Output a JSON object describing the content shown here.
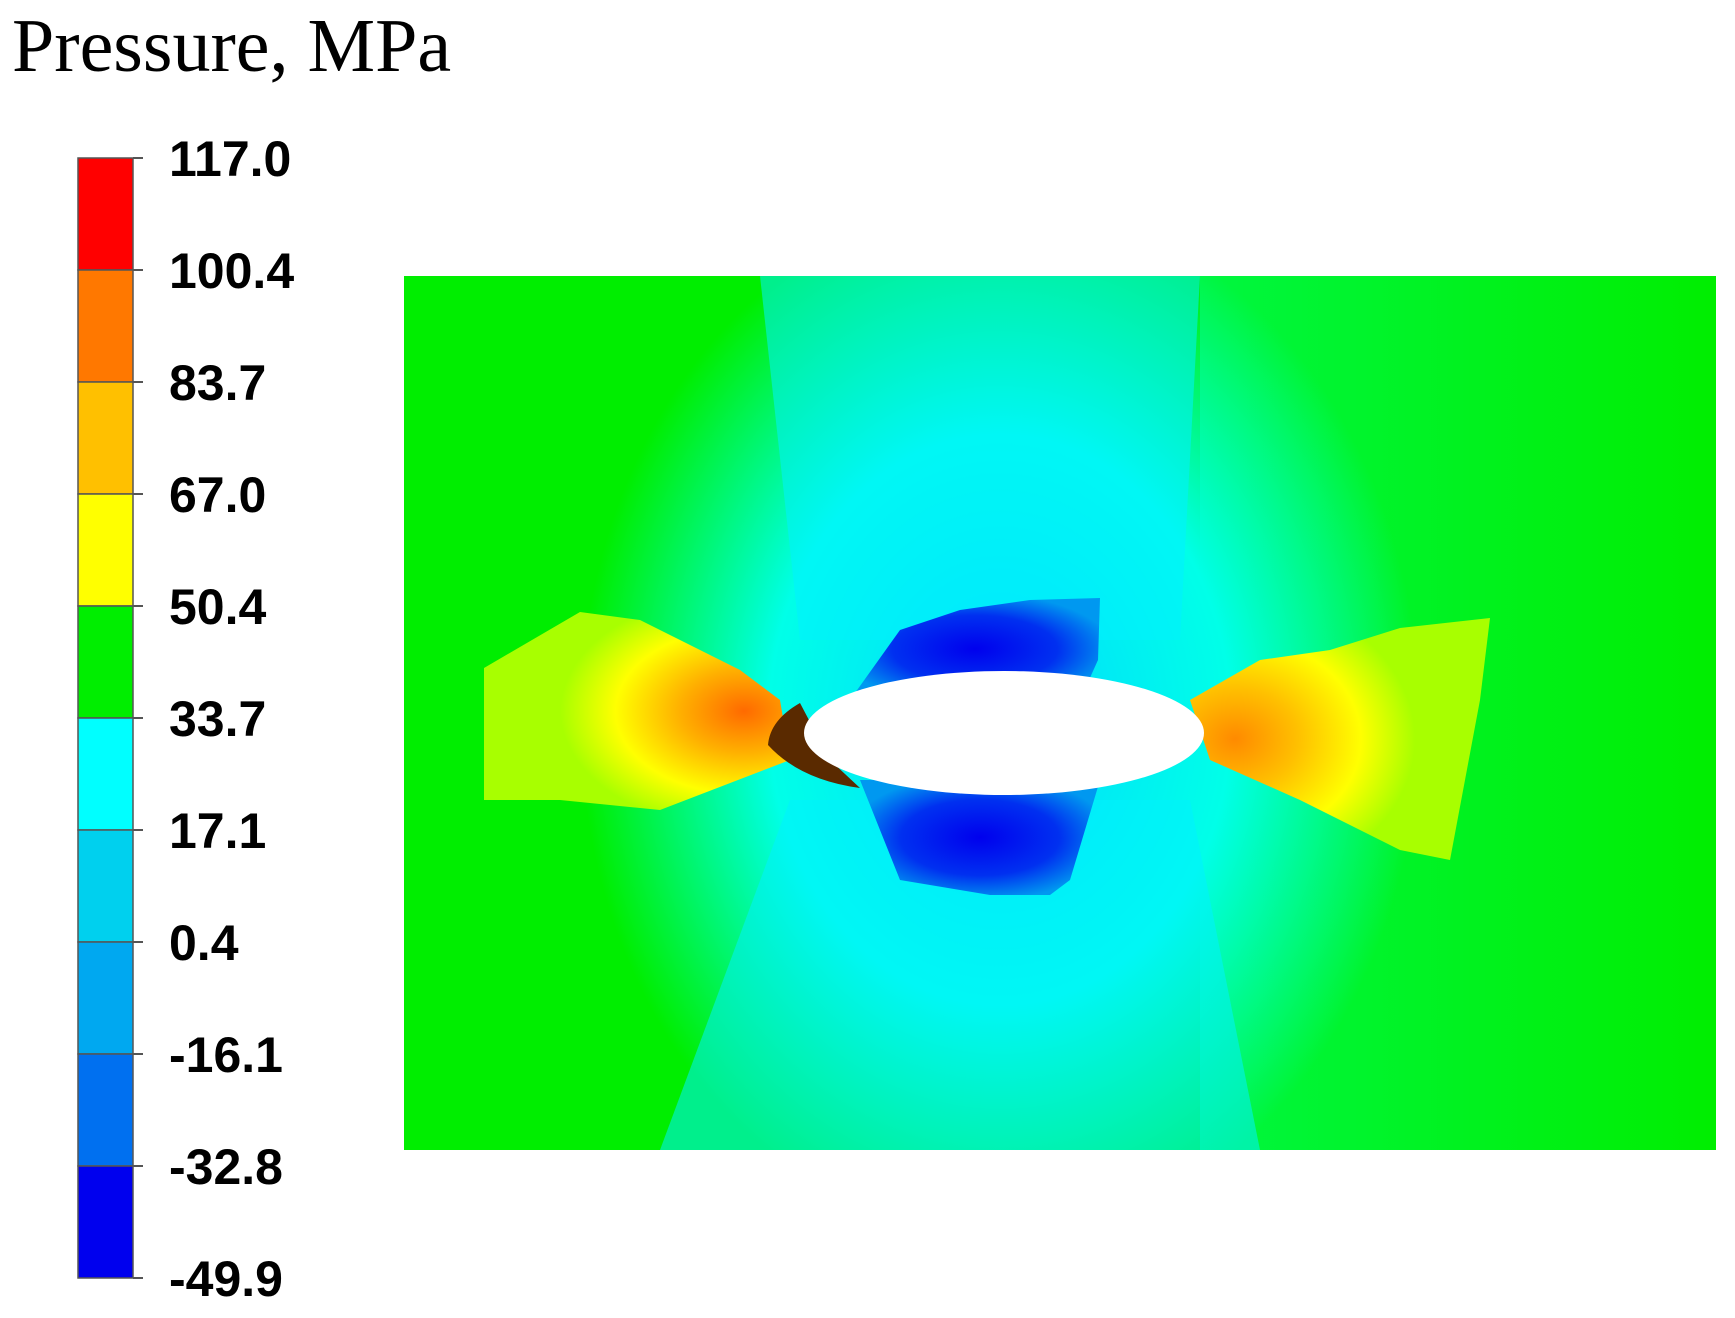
{
  "chart_data": {
    "type": "heatmap",
    "title": "Pressure, MPa",
    "colorbar": {
      "ticks": [
        "117.0",
        "100.4",
        "83.7",
        "67.0",
        "50.4",
        "33.7",
        "17.1",
        "0.4",
        "-16.1",
        "-32.8",
        "-49.9"
      ],
      "min": -49.9,
      "max": 117.0,
      "bands": [
        {
          "from": 100.4,
          "to": 117.0,
          "color": "#ff0000"
        },
        {
          "from": 83.7,
          "to": 100.4,
          "color": "#ff7800"
        },
        {
          "from": 67.0,
          "to": 83.7,
          "color": "#ffc000"
        },
        {
          "from": 50.4,
          "to": 67.0,
          "color": "#ffff00"
        },
        {
          "from": 33.7,
          "to": 50.4,
          "color": "#00ee00"
        },
        {
          "from": 17.1,
          "to": 33.7,
          "color": "#00ffff"
        },
        {
          "from": 0.4,
          "to": 17.1,
          "color": "#00d0ee"
        },
        {
          "from": -16.1,
          "to": 0.4,
          "color": "#00a8f0"
        },
        {
          "from": -32.8,
          "to": -16.1,
          "color": "#0070f0"
        },
        {
          "from": -49.9,
          "to": -32.8,
          "color": "#0000ee"
        }
      ]
    },
    "field": {
      "background_color": "#00ee00",
      "cavity_color": "#ffffff",
      "high_pressure_color": "#ffa000",
      "low_pressure_color": "#0000ee"
    }
  }
}
